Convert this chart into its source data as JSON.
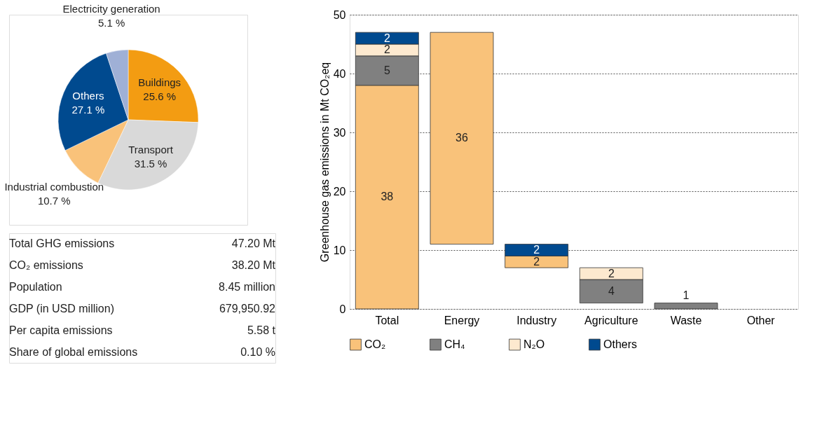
{
  "chart_data": [
    {
      "type": "pie",
      "categories": [
        "Buildings",
        "Transport",
        "Industrial combustion",
        "Others",
        "Electricity generation"
      ],
      "values": [
        25.6,
        31.5,
        10.7,
        27.1,
        5.1
      ],
      "value_labels": [
        "25.6 %",
        "31.5 %",
        "10.7 %",
        "27.1 %",
        "5.1 %"
      ],
      "colors": [
        "#f39c12",
        "#d9d9d9",
        "#f9c27a",
        "#004a8f",
        "#9fb0d6"
      ]
    },
    {
      "type": "other",
      "annotations": [
        "Total GHG emissions",
        "47.20 Mt",
        "CO₂ emissions",
        "38.20 Mt",
        "Population",
        "8.45 million",
        "GDP (in USD million)",
        "679,950.92",
        "Per capita emissions",
        "5.58 t",
        "Share of global emissions",
        "0.10 %"
      ]
    },
    {
      "type": "bar",
      "ylabel": "Greenhouse gas emissions in Mt CO₂eq",
      "categories": [
        "Total",
        "Energy",
        "Industry",
        "Agriculture",
        "Waste",
        "Other"
      ],
      "ylim": [
        0,
        50
      ],
      "yticks": [
        0,
        10,
        20,
        30,
        40,
        50
      ],
      "grid": "y",
      "legend": "bottom",
      "data_labels": true,
      "series": [
        {
          "name": "CO₂",
          "color": "#f9c27a",
          "values": [
            38,
            36,
            2,
            null,
            null,
            null
          ],
          "base": [
            0,
            11,
            7,
            null,
            null,
            null
          ]
        },
        {
          "name": "CH₄",
          "color": "#808080",
          "values": [
            5,
            null,
            null,
            4,
            1,
            null
          ],
          "base": [
            38,
            null,
            null,
            1,
            0,
            null
          ]
        },
        {
          "name": "N₂O",
          "color": "#fde9cf",
          "values": [
            2,
            null,
            null,
            2,
            null,
            null
          ],
          "base": [
            43,
            null,
            null,
            5,
            null,
            null
          ]
        },
        {
          "name": "Others",
          "color": "#004a8f",
          "values": [
            2,
            null,
            2,
            null,
            null,
            null
          ],
          "base": [
            45,
            null,
            9,
            null,
            null,
            null
          ]
        }
      ]
    }
  ]
}
